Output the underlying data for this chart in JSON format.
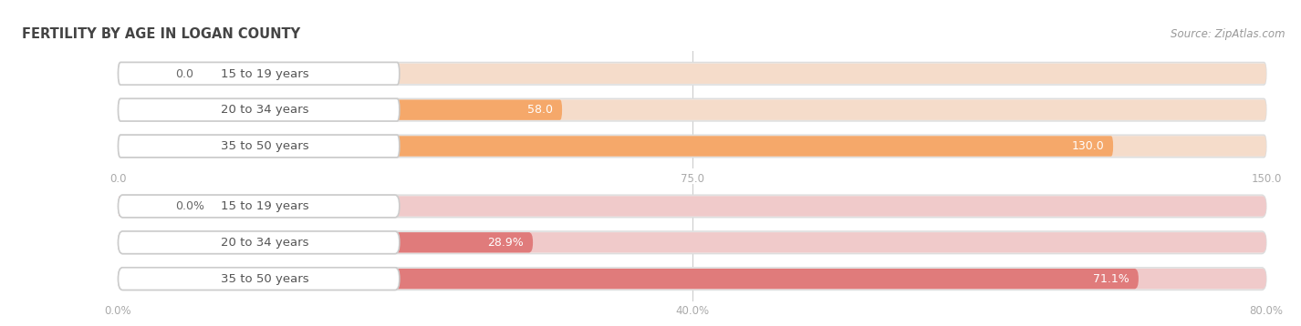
{
  "title": "FERTILITY BY AGE IN LOGAN COUNTY",
  "source": "Source: ZipAtlas.com",
  "chart1": {
    "categories": [
      "15 to 19 years",
      "20 to 34 years",
      "35 to 50 years"
    ],
    "values": [
      0.0,
      58.0,
      130.0
    ],
    "xlim": [
      0,
      150.0
    ],
    "xticks": [
      0.0,
      75.0,
      150.0
    ],
    "xtick_labels": [
      "0.0",
      "75.0",
      "150.0"
    ],
    "bar_color": "#F5A86A",
    "bg_color": "#EDEDED",
    "label_box_color": "#FFFFFF",
    "bar_bg_color": "#F5DCCA"
  },
  "chart2": {
    "categories": [
      "15 to 19 years",
      "20 to 34 years",
      "35 to 50 years"
    ],
    "values": [
      0.0,
      28.9,
      71.1
    ],
    "xlim": [
      0,
      80.0
    ],
    "xticks": [
      0.0,
      40.0,
      80.0
    ],
    "xtick_labels": [
      "0.0%",
      "40.0%",
      "80.0%"
    ],
    "bar_color": "#E07B7B",
    "bg_color": "#EDEDED",
    "label_box_color": "#FFFFFF",
    "bar_bg_color": "#F0CACA"
  },
  "bar_height": 0.62,
  "label_fontsize": 9,
  "category_fontsize": 9.5,
  "title_fontsize": 10.5,
  "source_fontsize": 8.5,
  "tick_fontsize": 8.5,
  "figure_bg": "#FFFFFF",
  "text_color": "#555555",
  "value_color_inside": "#FFFFFF",
  "value_color_outside": "#666666"
}
